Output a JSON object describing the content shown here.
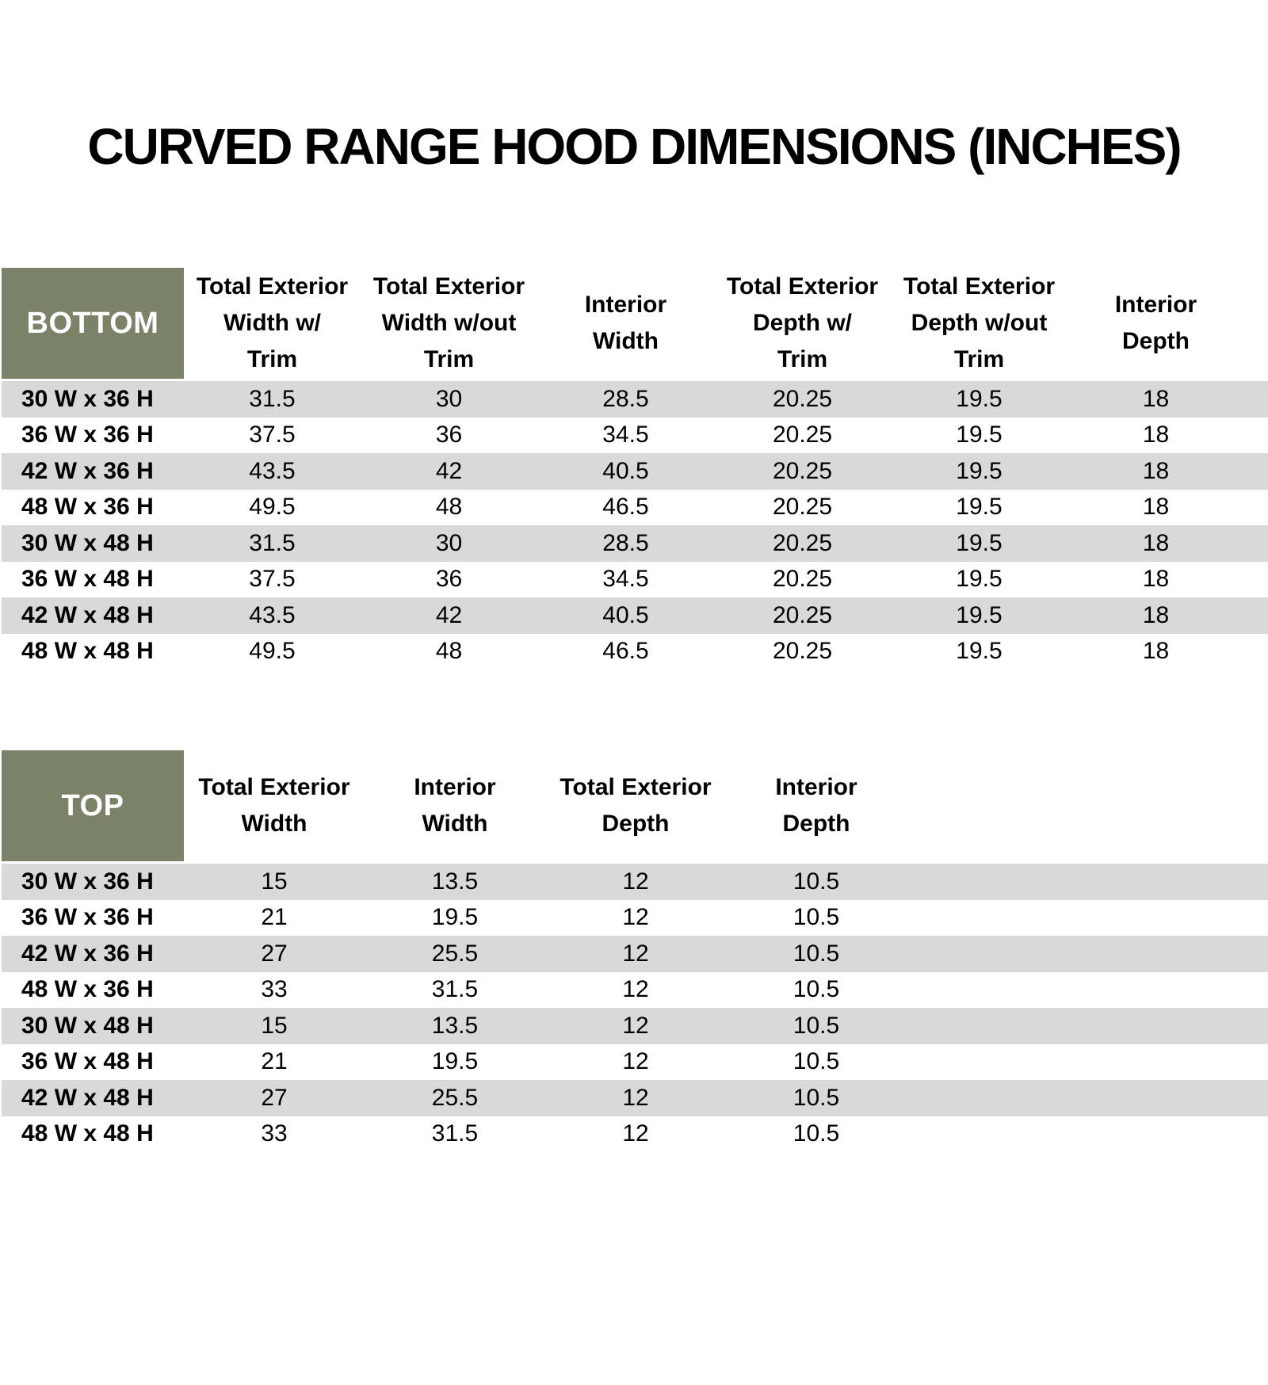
{
  "title": "CURVED RANGE HOOD DIMENSIONS (INCHES)",
  "colors": {
    "header_green": "#7A8368",
    "stripe_gray": "#D9D9D9",
    "text_black": "#000000",
    "header_label_text": "#FFFFFF"
  },
  "bottom_table": {
    "label": "BOTTOM",
    "columns": [
      "Total Exterior\nWidth w/\nTrim",
      "Total Exterior\nWidth w/out\nTrim",
      "Interior\nWidth",
      "Total Exterior\nDepth w/\nTrim",
      "Total Exterior\nDepth w/out\nTrim",
      "Interior\nDepth"
    ],
    "rows": [
      {
        "label": "30 W x 36 H",
        "values": [
          "31.5",
          "30",
          "28.5",
          "20.25",
          "19.5",
          "18"
        ]
      },
      {
        "label": "36 W x 36 H",
        "values": [
          "37.5",
          "36",
          "34.5",
          "20.25",
          "19.5",
          "18"
        ]
      },
      {
        "label": "42 W x 36 H",
        "values": [
          "43.5",
          "42",
          "40.5",
          "20.25",
          "19.5",
          "18"
        ]
      },
      {
        "label": "48 W x 36 H",
        "values": [
          "49.5",
          "48",
          "46.5",
          "20.25",
          "19.5",
          "18"
        ]
      },
      {
        "label": "30 W x 48 H",
        "values": [
          "31.5",
          "30",
          "28.5",
          "20.25",
          "19.5",
          "18"
        ]
      },
      {
        "label": "36 W x 48 H",
        "values": [
          "37.5",
          "36",
          "34.5",
          "20.25",
          "19.5",
          "18"
        ]
      },
      {
        "label": "42 W x 48 H",
        "values": [
          "43.5",
          "42",
          "40.5",
          "20.25",
          "19.5",
          "18"
        ]
      },
      {
        "label": "48 W x 48 H",
        "values": [
          "49.5",
          "48",
          "46.5",
          "20.25",
          "19.5",
          "18"
        ]
      }
    ]
  },
  "top_table": {
    "label": "TOP",
    "columns": [
      "Total Exterior\nWidth",
      "Interior\nWidth",
      "Total Exterior\nDepth",
      "Interior\nDepth"
    ],
    "rows": [
      {
        "label": "30 W x 36 H",
        "values": [
          "15",
          "13.5",
          "12",
          "10.5"
        ]
      },
      {
        "label": "36 W x 36 H",
        "values": [
          "21",
          "19.5",
          "12",
          "10.5"
        ]
      },
      {
        "label": "42 W x 36 H",
        "values": [
          "27",
          "25.5",
          "12",
          "10.5"
        ]
      },
      {
        "label": "48 W x 36 H",
        "values": [
          "33",
          "31.5",
          "12",
          "10.5"
        ]
      },
      {
        "label": "30 W x 48 H",
        "values": [
          "15",
          "13.5",
          "12",
          "10.5"
        ]
      },
      {
        "label": "36 W x 48 H",
        "values": [
          "21",
          "19.5",
          "12",
          "10.5"
        ]
      },
      {
        "label": "42 W x 48 H",
        "values": [
          "27",
          "25.5",
          "12",
          "10.5"
        ]
      },
      {
        "label": "48 W x 48 H",
        "values": [
          "33",
          "31.5",
          "12",
          "10.5"
        ]
      }
    ]
  }
}
